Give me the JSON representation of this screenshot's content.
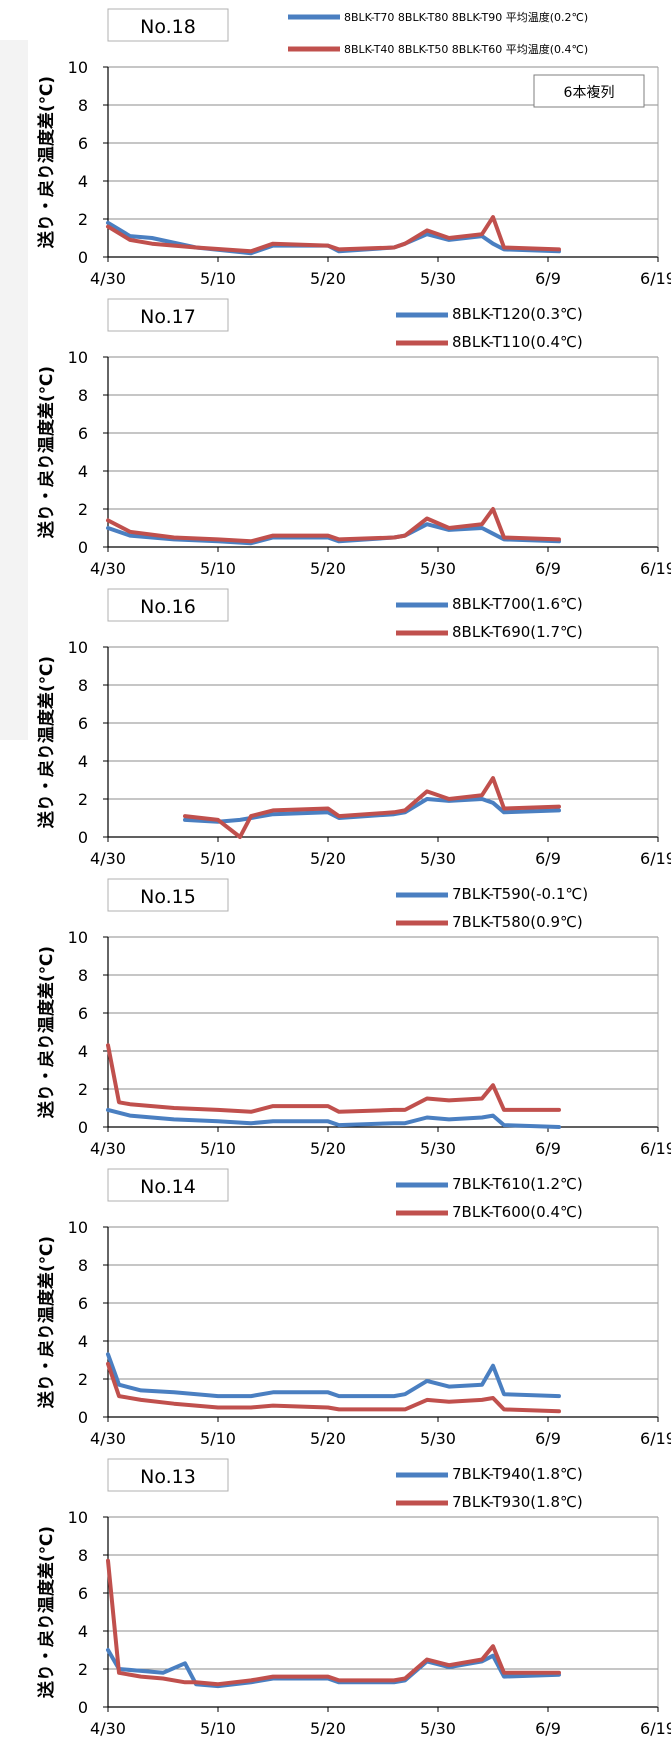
{
  "ylabel": "送り・戻り温度差(℃)",
  "yticks": [
    "0",
    "2",
    "4",
    "6",
    "8",
    "10"
  ],
  "xticks": [
    "4/30",
    "5/10",
    "5/20",
    "5/30",
    "6/9",
    "6/19"
  ],
  "colors": {
    "blue": "#4a7fc1",
    "red": "#c0504d",
    "grid": "#8c8c8c",
    "frame": "#a0a0a0"
  },
  "chart_data": [
    {
      "type": "line",
      "title": "No.18",
      "note": "6本複列",
      "x_range": [
        "4/30",
        "6/19"
      ],
      "ylim": [
        0,
        10
      ],
      "grid": true,
      "series": [
        {
          "name": "8BLK-T70 8BLK-T80 8BLK-T90 平均温度(0.2℃)",
          "color": "#4a7fc1",
          "x": [
            "4/30",
            "5/2",
            "5/4",
            "5/8",
            "5/13",
            "5/15",
            "5/20",
            "5/21",
            "5/26",
            "5/27",
            "5/29",
            "5/31",
            "6/3",
            "6/4",
            "6/5",
            "6/10"
          ],
          "y": [
            1.8,
            1.1,
            1.0,
            0.5,
            0.2,
            0.6,
            0.6,
            0.3,
            0.5,
            0.7,
            1.2,
            0.9,
            1.1,
            0.7,
            0.4,
            0.3
          ]
        },
        {
          "name": "8BLK-T40 8BLK-T50 8BLK-T60 平均温度(0.4℃)",
          "color": "#c0504d",
          "x": [
            "4/30",
            "5/2",
            "5/4",
            "5/8",
            "5/13",
            "5/15",
            "5/20",
            "5/21",
            "5/26",
            "5/27",
            "5/29",
            "5/31",
            "6/3",
            "6/4",
            "6/5",
            "6/10"
          ],
          "y": [
            1.6,
            0.9,
            0.7,
            0.5,
            0.3,
            0.7,
            0.6,
            0.4,
            0.5,
            0.7,
            1.4,
            1.0,
            1.2,
            2.1,
            0.5,
            0.4
          ]
        }
      ]
    },
    {
      "type": "line",
      "title": "No.17",
      "x_range": [
        "4/30",
        "6/19"
      ],
      "ylim": [
        0,
        10
      ],
      "grid": true,
      "series": [
        {
          "name": "8BLK-T120(0.3℃)",
          "color": "#4a7fc1",
          "x": [
            "4/30",
            "5/2",
            "5/6",
            "5/10",
            "5/13",
            "5/15",
            "5/20",
            "5/21",
            "5/26",
            "5/27",
            "5/29",
            "5/31",
            "6/3",
            "6/4",
            "6/5",
            "6/10"
          ],
          "y": [
            1.0,
            0.6,
            0.4,
            0.3,
            0.2,
            0.5,
            0.5,
            0.3,
            0.5,
            0.6,
            1.2,
            0.9,
            1.0,
            0.7,
            0.4,
            0.3
          ]
        },
        {
          "name": "8BLK-T110(0.4℃)",
          "color": "#c0504d",
          "x": [
            "4/30",
            "5/2",
            "5/6",
            "5/10",
            "5/13",
            "5/15",
            "5/20",
            "5/21",
            "5/26",
            "5/27",
            "5/29",
            "5/31",
            "6/3",
            "6/4",
            "6/5",
            "6/10"
          ],
          "y": [
            1.4,
            0.8,
            0.5,
            0.4,
            0.3,
            0.6,
            0.6,
            0.4,
            0.5,
            0.6,
            1.5,
            1.0,
            1.2,
            2.0,
            0.5,
            0.4
          ]
        }
      ]
    },
    {
      "type": "line",
      "title": "No.16",
      "x_range": [
        "4/30",
        "6/19"
      ],
      "ylim": [
        0,
        10
      ],
      "grid": true,
      "series": [
        {
          "name": "8BLK-T700(1.6℃)",
          "color": "#4a7fc1",
          "x": [
            "5/7",
            "5/10",
            "5/12",
            "5/13",
            "5/15",
            "5/20",
            "5/21",
            "5/26",
            "5/27",
            "5/29",
            "5/31",
            "6/3",
            "6/4",
            "6/5",
            "6/10"
          ],
          "y": [
            0.9,
            0.8,
            0.9,
            1.0,
            1.2,
            1.3,
            1.0,
            1.2,
            1.3,
            2.0,
            1.9,
            2.0,
            1.8,
            1.3,
            1.4
          ]
        },
        {
          "name": "8BLK-T690(1.7℃)",
          "color": "#c0504d",
          "x": [
            "5/7",
            "5/10",
            "5/12",
            "5/13",
            "5/15",
            "5/20",
            "5/21",
            "5/26",
            "5/27",
            "5/29",
            "5/31",
            "6/3",
            "6/4",
            "6/5",
            "6/10"
          ],
          "y": [
            1.1,
            0.9,
            0.0,
            1.1,
            1.4,
            1.5,
            1.1,
            1.3,
            1.4,
            2.4,
            2.0,
            2.2,
            3.1,
            1.5,
            1.6
          ]
        }
      ]
    },
    {
      "type": "line",
      "title": "No.15",
      "x_range": [
        "4/30",
        "6/19"
      ],
      "ylim": [
        0,
        10
      ],
      "grid": true,
      "series": [
        {
          "name": "7BLK-T590(-0.1℃)",
          "color": "#4a7fc1",
          "x": [
            "4/30",
            "5/2",
            "5/6",
            "5/10",
            "5/13",
            "5/15",
            "5/20",
            "5/21",
            "5/26",
            "5/27",
            "5/29",
            "5/31",
            "6/3",
            "6/4",
            "6/5",
            "6/10"
          ],
          "y": [
            0.9,
            0.6,
            0.4,
            0.3,
            0.2,
            0.3,
            0.3,
            0.1,
            0.2,
            0.2,
            0.5,
            0.4,
            0.5,
            0.6,
            0.1,
            0.0
          ]
        },
        {
          "name": "7BLK-T580(0.9℃)",
          "color": "#c0504d",
          "x": [
            "4/30",
            "5/1",
            "5/2",
            "5/6",
            "5/10",
            "5/13",
            "5/15",
            "5/20",
            "5/21",
            "5/26",
            "5/27",
            "5/29",
            "5/31",
            "6/3",
            "6/4",
            "6/5",
            "6/10"
          ],
          "y": [
            4.3,
            1.3,
            1.2,
            1.0,
            0.9,
            0.8,
            1.1,
            1.1,
            0.8,
            0.9,
            0.9,
            1.5,
            1.4,
            1.5,
            2.2,
            0.9,
            0.9
          ]
        }
      ]
    },
    {
      "type": "line",
      "title": "No.14",
      "x_range": [
        "4/30",
        "6/19"
      ],
      "ylim": [
        0,
        10
      ],
      "grid": true,
      "series": [
        {
          "name": "7BLK-T610(1.2℃)",
          "color": "#4a7fc1",
          "x": [
            "4/30",
            "5/1",
            "5/3",
            "5/6",
            "5/10",
            "5/13",
            "5/15",
            "5/20",
            "5/21",
            "5/26",
            "5/27",
            "5/29",
            "5/31",
            "6/3",
            "6/4",
            "6/5",
            "6/10"
          ],
          "y": [
            3.3,
            1.7,
            1.4,
            1.3,
            1.1,
            1.1,
            1.3,
            1.3,
            1.1,
            1.1,
            1.2,
            1.9,
            1.6,
            1.7,
            2.7,
            1.2,
            1.1
          ]
        },
        {
          "name": "7BLK-T600(0.4℃)",
          "color": "#c0504d",
          "x": [
            "4/30",
            "5/1",
            "5/3",
            "5/6",
            "5/10",
            "5/13",
            "5/15",
            "5/20",
            "5/21",
            "5/26",
            "5/27",
            "5/29",
            "5/31",
            "6/3",
            "6/4",
            "6/5",
            "6/10"
          ],
          "y": [
            2.8,
            1.1,
            0.9,
            0.7,
            0.5,
            0.5,
            0.6,
            0.5,
            0.4,
            0.4,
            0.4,
            0.9,
            0.8,
            0.9,
            1.0,
            0.4,
            0.3
          ]
        }
      ]
    },
    {
      "type": "line",
      "title": "No.13",
      "x_range": [
        "4/30",
        "6/19"
      ],
      "ylim": [
        0,
        10
      ],
      "grid": true,
      "series": [
        {
          "name": "7BLK-T940(1.8℃)",
          "color": "#4a7fc1",
          "x": [
            "4/30",
            "5/1",
            "5/3",
            "5/5",
            "5/7",
            "5/8",
            "5/10",
            "5/13",
            "5/15",
            "5/20",
            "5/21",
            "5/26",
            "5/27",
            "5/29",
            "5/31",
            "6/3",
            "6/4",
            "6/5",
            "6/10"
          ],
          "y": [
            3.0,
            2.0,
            1.9,
            1.8,
            2.3,
            1.2,
            1.1,
            1.3,
            1.5,
            1.5,
            1.3,
            1.3,
            1.4,
            2.4,
            2.1,
            2.4,
            2.7,
            1.6,
            1.7
          ]
        },
        {
          "name": "7BLK-T930(1.8℃)",
          "color": "#c0504d",
          "x": [
            "4/30",
            "5/1",
            "5/3",
            "5/5",
            "5/7",
            "5/8",
            "5/10",
            "5/13",
            "5/15",
            "5/20",
            "5/21",
            "5/26",
            "5/27",
            "5/29",
            "5/31",
            "6/3",
            "6/4",
            "6/5",
            "6/10"
          ],
          "y": [
            7.7,
            1.8,
            1.6,
            1.5,
            1.3,
            1.3,
            1.2,
            1.4,
            1.6,
            1.6,
            1.4,
            1.4,
            1.5,
            2.5,
            2.2,
            2.5,
            3.2,
            1.8,
            1.8
          ]
        }
      ]
    }
  ]
}
